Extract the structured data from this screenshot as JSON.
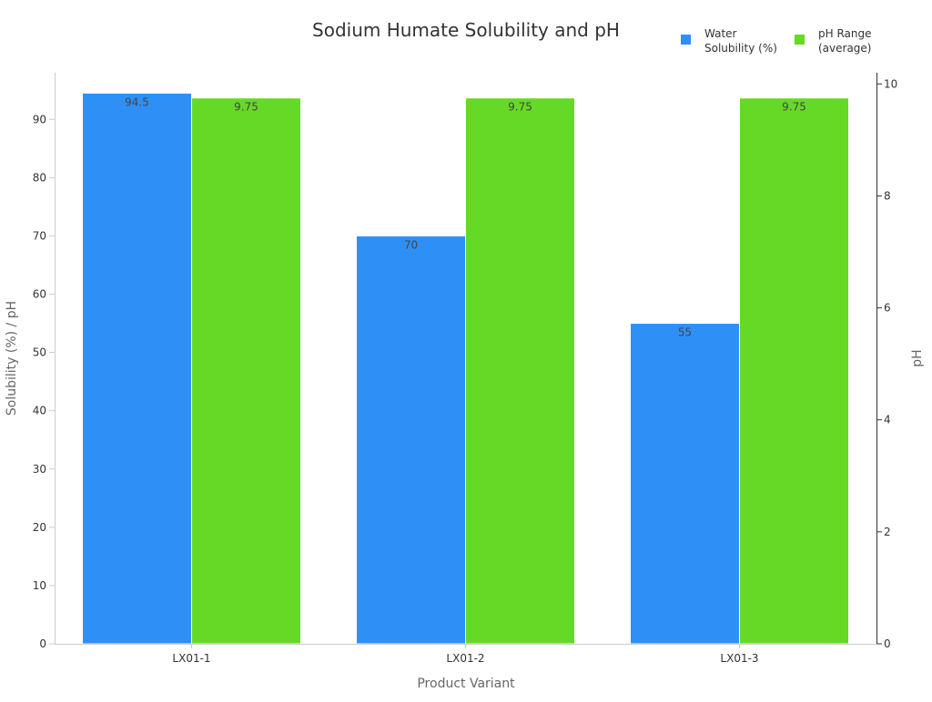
{
  "chart_data": {
    "type": "bar",
    "title": "Sodium Humate Solubility and pH",
    "xlabel": "Product Variant",
    "ylabel": "Solubility (%) / pH",
    "y2label": "pH",
    "categories": [
      "LX01-1",
      "LX01-2",
      "LX01-3"
    ],
    "ylim": [
      0,
      98
    ],
    "y2lim": [
      0,
      10.2
    ],
    "yticks": [
      0,
      10,
      20,
      30,
      40,
      50,
      60,
      70,
      80,
      90
    ],
    "y2ticks": [
      0,
      2,
      4,
      6,
      8,
      10
    ],
    "grid": false,
    "legend_position": "top-right",
    "series": [
      {
        "name": "Water Solubility (%)",
        "legend_lines": [
          "Water",
          "Solubility (%)"
        ],
        "axis": "left",
        "color": "#2e90f7",
        "values": [
          94.5,
          70,
          55
        ],
        "labels": [
          "94.5",
          "70",
          "55"
        ]
      },
      {
        "name": "pH Range (average)",
        "legend_lines": [
          "pH Range",
          "(average)"
        ],
        "axis": "right",
        "color": "#66d926",
        "values": [
          9.75,
          9.75,
          9.75
        ],
        "labels": [
          "9.75",
          "9.75",
          "9.75"
        ]
      }
    ]
  }
}
